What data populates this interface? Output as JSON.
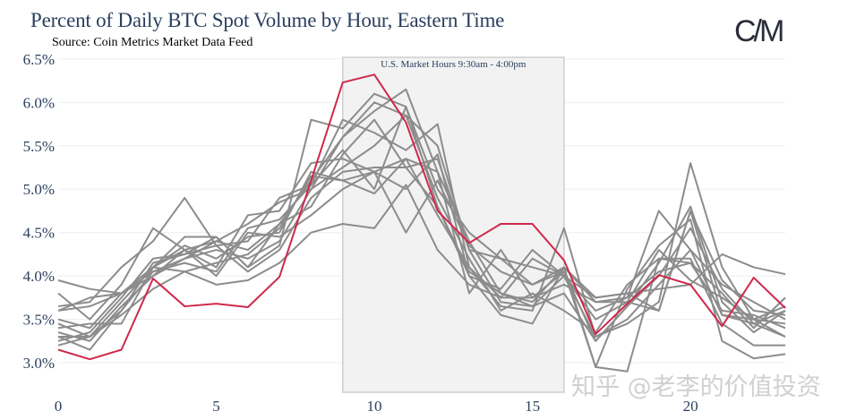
{
  "chart_data": {
    "type": "line",
    "title": "Percent of Daily BTC Spot Volume by Hour, Eastern Time",
    "subtitle": "Source: Coin Metrics Market Data Feed",
    "xlabel": "",
    "ylabel": "",
    "xlim": [
      0,
      23
    ],
    "ylim": [
      2.66,
      6.54
    ],
    "x_ticks": [
      0,
      5,
      10,
      15,
      20
    ],
    "x_tick_labels": [
      "0",
      "5",
      "10",
      "15",
      "20"
    ],
    "y_ticks": [
      3.0,
      3.5,
      4.0,
      4.5,
      5.0,
      5.5,
      6.0,
      6.5
    ],
    "y_tick_labels": [
      "3.0%",
      "3.5%",
      "4.0%",
      "4.5%",
      "5.0%",
      "5.5%",
      "6.0%",
      "6.5%"
    ],
    "grid": "horizontal",
    "shaded_region": {
      "x_start": 9,
      "x_end": 16,
      "label": "U.S. Market Hours 9:30am - 4:00pm",
      "color": "#f2f2f2"
    },
    "highlight_color": "#d0284c",
    "base_color": "#8c8c8c",
    "x": [
      0,
      1,
      2,
      3,
      4,
      5,
      6,
      7,
      8,
      9,
      10,
      11,
      12,
      13,
      14,
      15,
      16,
      17,
      18,
      19,
      20,
      21,
      22,
      23
    ],
    "highlight_series": {
      "name": "highlighted",
      "values": [
        3.15,
        3.04,
        3.15,
        3.97,
        3.65,
        3.68,
        3.64,
        3.99,
        5.1,
        6.23,
        6.32,
        5.77,
        4.75,
        4.38,
        4.6,
        4.6,
        4.18,
        3.33,
        3.68,
        4.01,
        3.9,
        3.42,
        3.98,
        3.63
      ]
    },
    "series": [
      {
        "name": "s1",
        "values": [
          3.95,
          3.85,
          3.8,
          4.1,
          4.45,
          4.45,
          4.1,
          4.35,
          5.8,
          5.7,
          6.1,
          5.95,
          5.0,
          4.5,
          4.2,
          4.1,
          4.0,
          3.75,
          3.8,
          3.85,
          3.9,
          4.25,
          4.1,
          4.02
        ]
      },
      {
        "name": "s2",
        "values": [
          3.8,
          3.5,
          3.9,
          4.55,
          4.3,
          4.4,
          4.6,
          4.85,
          5.0,
          5.6,
          5.9,
          6.15,
          5.2,
          4.4,
          3.8,
          3.7,
          4.1,
          3.7,
          3.75,
          4.75,
          4.3,
          3.9,
          3.7,
          3.5
        ]
      },
      {
        "name": "s3",
        "values": [
          3.65,
          3.7,
          4.1,
          4.4,
          4.9,
          4.35,
          4.4,
          4.9,
          5.05,
          5.8,
          5.65,
          5.45,
          5.75,
          4.1,
          3.65,
          3.6,
          4.55,
          3.3,
          3.45,
          3.7,
          5.3,
          4.1,
          3.5,
          3.3
        ]
      },
      {
        "name": "s4",
        "values": [
          3.45,
          3.3,
          3.6,
          4.15,
          4.25,
          4.45,
          4.1,
          4.6,
          5.1,
          5.6,
          6.0,
          5.85,
          5.5,
          4.3,
          3.7,
          3.65,
          3.8,
          3.25,
          3.65,
          4.15,
          4.8,
          3.7,
          3.35,
          3.6
        ]
      },
      {
        "name": "s5",
        "values": [
          3.6,
          3.65,
          3.8,
          4.0,
          4.3,
          4.1,
          4.7,
          4.75,
          5.3,
          5.35,
          5.2,
          5.0,
          5.4,
          4.0,
          3.85,
          4.3,
          4.0,
          3.3,
          3.5,
          3.9,
          4.3,
          3.55,
          3.45,
          3.3
        ]
      },
      {
        "name": "s6",
        "values": [
          3.3,
          3.15,
          3.6,
          4.05,
          4.2,
          4.3,
          4.2,
          4.4,
          5.0,
          5.25,
          5.5,
          5.85,
          4.9,
          4.2,
          3.6,
          3.8,
          3.6,
          3.35,
          3.9,
          4.2,
          4.15,
          3.6,
          3.55,
          3.4
        ]
      },
      {
        "name": "s7",
        "values": [
          3.4,
          3.45,
          3.45,
          4.1,
          4.3,
          4.0,
          4.5,
          4.45,
          4.7,
          5.0,
          5.2,
          5.35,
          4.7,
          4.1,
          3.75,
          4.2,
          4.0,
          3.5,
          3.7,
          4.3,
          3.95,
          3.75,
          3.5,
          3.65
        ]
      },
      {
        "name": "s8",
        "values": [
          3.2,
          3.3,
          3.7,
          4.1,
          4.05,
          3.9,
          3.95,
          4.15,
          4.5,
          4.6,
          4.55,
          5.05,
          4.3,
          3.9,
          3.75,
          3.75,
          4.05,
          3.25,
          3.65,
          4.0,
          4.55,
          3.85,
          3.45,
          3.6
        ]
      },
      {
        "name": "s9",
        "values": [
          3.35,
          3.25,
          3.65,
          4.0,
          4.2,
          4.4,
          4.3,
          4.6,
          4.8,
          5.4,
          5.8,
          5.25,
          5.35,
          4.3,
          4.2,
          3.9,
          4.1,
          3.75,
          3.8,
          3.6,
          4.75,
          3.95,
          3.6,
          3.55
        ]
      },
      {
        "name": "s10",
        "values": [
          3.5,
          3.4,
          3.8,
          4.1,
          4.35,
          4.2,
          4.45,
          4.5,
          5.2,
          5.1,
          5.2,
          4.5,
          5.1,
          4.35,
          4.05,
          3.9,
          4.05,
          2.95,
          2.9,
          4.2,
          4.2,
          3.45,
          3.2,
          3.2
        ]
      },
      {
        "name": "s11",
        "values": [
          3.25,
          3.35,
          3.75,
          4.2,
          4.25,
          4.35,
          4.05,
          4.3,
          4.9,
          5.2,
          5.25,
          5.25,
          4.8,
          4.0,
          3.55,
          3.45,
          4.1,
          2.95,
          3.85,
          4.35,
          4.65,
          3.25,
          3.05,
          3.1
        ]
      },
      {
        "name": "s12",
        "values": [
          3.3,
          3.3,
          3.55,
          3.85,
          4.05,
          4.15,
          4.25,
          4.55,
          5.15,
          5.1,
          4.95,
          5.35,
          5.2,
          3.8,
          4.3,
          3.75,
          3.9,
          3.7,
          3.7,
          3.6,
          4.75,
          3.55,
          3.5,
          3.45
        ]
      },
      {
        "name": "s13",
        "values": [
          3.6,
          3.75,
          3.8,
          4.05,
          4.15,
          4.05,
          4.55,
          4.65,
          5.05,
          5.45,
          5.0,
          5.95,
          4.8,
          4.05,
          3.8,
          3.65,
          4.0,
          3.6,
          3.75,
          4.05,
          4.15,
          3.8,
          3.4,
          3.75
        ]
      }
    ]
  },
  "logo_text": "C/M",
  "watermark": "知乎 @老李的价值投资"
}
